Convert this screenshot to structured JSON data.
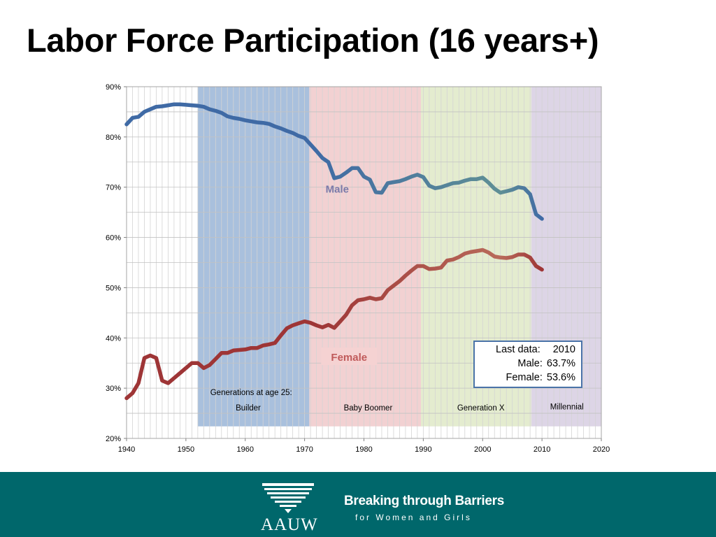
{
  "slide": {
    "title": "Labor Force Participation (16 years+)"
  },
  "chart_data": {
    "type": "line",
    "xlim": [
      1940,
      2020
    ],
    "ylim": [
      20,
      90
    ],
    "x_ticks": [
      "1940",
      "1950",
      "1960",
      "1970",
      "1980",
      "1990",
      "2000",
      "2010",
      "2020"
    ],
    "y_ticks": [
      "20%",
      "30%",
      "40%",
      "50%",
      "60%",
      "70%",
      "80%",
      "90%"
    ],
    "grid": true,
    "series": [
      {
        "name": "Male",
        "color": "#3f6aa5",
        "x": [
          1940,
          1941,
          1942,
          1943,
          1944,
          1945,
          1946,
          1947,
          1948,
          1949,
          1950,
          1951,
          1952,
          1953,
          1954,
          1955,
          1956,
          1957,
          1958,
          1959,
          1960,
          1961,
          1962,
          1963,
          1964,
          1965,
          1966,
          1967,
          1968,
          1969,
          1970,
          1971,
          1972,
          1973,
          1974,
          1975,
          1976,
          1977,
          1978,
          1979,
          1980,
          1981,
          1982,
          1983,
          1984,
          1985,
          1986,
          1987,
          1988,
          1989,
          1990,
          1991,
          1992,
          1993,
          1994,
          1995,
          1996,
          1997,
          1998,
          1999,
          2000,
          2001,
          2002,
          2003,
          2004,
          2005,
          2006,
          2007,
          2008,
          2009,
          2010
        ],
        "values": [
          82.5,
          83.8,
          84.0,
          85.0,
          85.5,
          86.0,
          86.1,
          86.3,
          86.5,
          86.5,
          86.4,
          86.3,
          86.2,
          86.0,
          85.5,
          85.2,
          84.8,
          84.1,
          83.8,
          83.6,
          83.3,
          83.1,
          82.9,
          82.8,
          82.6,
          82.1,
          81.7,
          81.2,
          80.8,
          80.2,
          79.8,
          78.5,
          77.2,
          75.8,
          75.0,
          71.8,
          72.1,
          72.9,
          73.8,
          73.8,
          72.1,
          71.5,
          69.0,
          68.9,
          70.8,
          71.0,
          71.2,
          71.6,
          72.1,
          72.5,
          72.0,
          70.3,
          69.8,
          70.0,
          70.4,
          70.8,
          70.9,
          71.3,
          71.6,
          71.6,
          71.9,
          70.9,
          69.7,
          68.9,
          69.2,
          69.5,
          70.0,
          69.8,
          68.6,
          64.6,
          63.7
        ]
      },
      {
        "name": "Female",
        "color": "#9e3536",
        "x": [
          1940,
          1941,
          1942,
          1943,
          1944,
          1945,
          1946,
          1947,
          1948,
          1949,
          1950,
          1951,
          1952,
          1953,
          1954,
          1955,
          1956,
          1957,
          1958,
          1959,
          1960,
          1961,
          1962,
          1963,
          1964,
          1965,
          1966,
          1967,
          1968,
          1969,
          1970,
          1971,
          1972,
          1973,
          1974,
          1975,
          1976,
          1977,
          1978,
          1979,
          1980,
          1981,
          1982,
          1983,
          1984,
          1985,
          1986,
          1987,
          1988,
          1989,
          1990,
          1991,
          1992,
          1993,
          1994,
          1995,
          1996,
          1997,
          1998,
          1999,
          2000,
          2001,
          2002,
          2003,
          2004,
          2005,
          2006,
          2007,
          2008,
          2009,
          2010
        ],
        "values": [
          28.0,
          29.0,
          31.0,
          36.0,
          36.5,
          36.0,
          31.5,
          31.0,
          32.0,
          33.0,
          34.0,
          35.0,
          35.0,
          34.0,
          34.6,
          35.8,
          37.0,
          37.0,
          37.5,
          37.6,
          37.7,
          38.0,
          38.0,
          38.5,
          38.7,
          39.0,
          40.5,
          41.9,
          42.5,
          42.9,
          43.3,
          43.0,
          42.5,
          42.1,
          42.6,
          42.0,
          43.3,
          44.6,
          46.5,
          47.5,
          47.7,
          48.0,
          47.7,
          47.9,
          49.5,
          50.4,
          51.3,
          52.4,
          53.4,
          54.3,
          54.3,
          53.7,
          53.8,
          54.0,
          55.4,
          55.6,
          56.1,
          56.8,
          57.1,
          57.3,
          57.5,
          57.0,
          56.2,
          56.0,
          55.9,
          56.1,
          56.6,
          56.6,
          56.0,
          54.3,
          53.6
        ]
      }
    ],
    "series_labels": [
      {
        "series": "Male",
        "text": "Male",
        "x": 1975.5,
        "y": 69.5,
        "color": "#7b7aa9"
      },
      {
        "series": "Female",
        "text": "Female",
        "x": 1977.5,
        "y": 36.0,
        "color": "#c05a5a",
        "background": "#f5d2d2"
      }
    ],
    "bands": [
      {
        "name": "Builder",
        "from": 1952,
        "to": 1970.8,
        "color": "#a9c0dd",
        "label": "Builder"
      },
      {
        "name": "Baby Boomer",
        "from": 1970.8,
        "to": 1989.6,
        "color": "#f2d1d2",
        "label": "Baby Boomer"
      },
      {
        "name": "Generation X",
        "from": 1989.6,
        "to": 2008.2,
        "color": "#e4eccf",
        "label": "Generation X"
      },
      {
        "name": "Millennial",
        "from": 2008.2,
        "to": 2020,
        "color": "#ddd5e6",
        "label": "Millennial"
      }
    ],
    "band_heading": "Generations at age 25:",
    "annotation": {
      "rows": [
        {
          "label": "Last data:",
          "value": "2010"
        },
        {
          "label": "Male:",
          "value": "63.7%"
        },
        {
          "label": "Female:",
          "value": "53.6%"
        }
      ]
    }
  },
  "footer": {
    "org": "AAUW",
    "tagline_main": "Breaking through Barriers",
    "tagline_sub": "for Women and Girls",
    "background": "#00676b"
  }
}
